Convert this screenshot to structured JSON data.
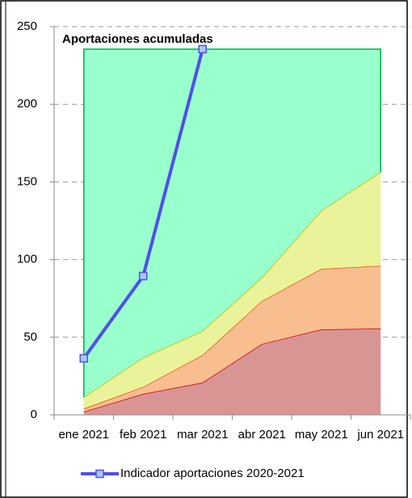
{
  "chart_data": {
    "type": "stacked-area-line",
    "title": "Aportaciones acumuladas",
    "categories": [
      "ene 2021",
      "feb 2021",
      "mar 2021",
      "abr 2021",
      "may 2021",
      "jun 2021"
    ],
    "areas": [
      {
        "color": "#d99594",
        "edge": "#c00000",
        "values": [
          2,
          13.5,
          20.8,
          45.7,
          55,
          55.6
        ]
      },
      {
        "color": "#f9be8f",
        "edge": "#e4540a",
        "values": [
          2,
          4.5,
          17.7,
          27.6,
          39,
          40.4
        ]
      },
      {
        "color": "#ebf39a",
        "edge": "#c0c000",
        "values": [
          7.4,
          18.9,
          15.5,
          15.1,
          37.5,
          60.4
        ]
      },
      {
        "color": "#99ffcc",
        "edge": "#00b050",
        "values": [
          224.1,
          198.6,
          181.5,
          147.1,
          104,
          79.1
        ]
      }
    ],
    "series": [
      {
        "name": "Indicador aportaciones 2020-2021",
        "color": "#4f4fe8",
        "values": [
          36.4,
          89.4,
          235.5,
          null,
          null,
          null
        ]
      }
    ],
    "ylim": [
      0,
      250
    ],
    "yticks": [
      0,
      50,
      100,
      150,
      200,
      250
    ],
    "grid": true,
    "legend": "bottom"
  }
}
